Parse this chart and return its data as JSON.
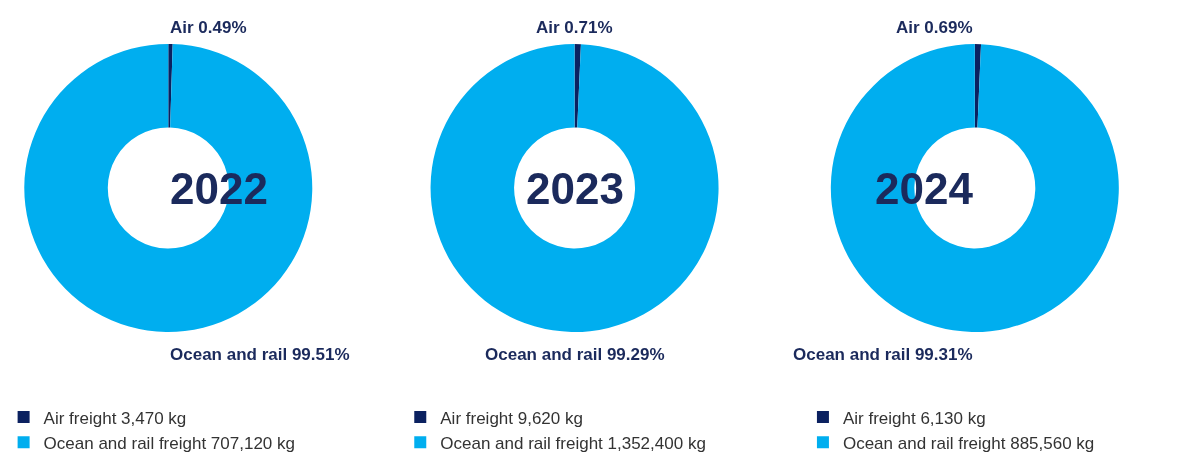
{
  "chart_data": [
    {
      "type": "donut",
      "title": "2022",
      "categories": [
        "Air freight",
        "Ocean and rail freight"
      ],
      "values": [
        3470,
        707120
      ],
      "value_labels": [
        "3,470 kg",
        "707,120 kg"
      ],
      "colors": [
        "#0b2160",
        "#00aeef"
      ],
      "annotations": [
        "Air 0.49%",
        "Ocean and rail 99.51%"
      ],
      "legend": "bottom left"
    },
    {
      "type": "donut",
      "title": "2023",
      "categories": [
        "Air freight",
        "Ocean and rail freight"
      ],
      "values": [
        9620,
        1352400
      ],
      "value_labels": [
        "9,620 kg",
        "1,352,400 kg"
      ],
      "colors": [
        "#0b2160",
        "#00aeef"
      ],
      "annotations": [
        "Air 0.71%",
        "Ocean and rail 99.29%"
      ],
      "legend": "bottom left"
    },
    {
      "type": "donut",
      "title": "2024",
      "categories": [
        "Air freight",
        "Ocean and rail freight"
      ],
      "values": [
        6130,
        885560
      ],
      "value_labels": [
        "6,130 kg",
        "885,560 kg"
      ],
      "colors": [
        "#0b2160",
        "#00aeef"
      ],
      "annotations": [
        "Air 0.69%",
        "Ocean and rail 99.31%"
      ],
      "legend": "bottom left"
    }
  ]
}
